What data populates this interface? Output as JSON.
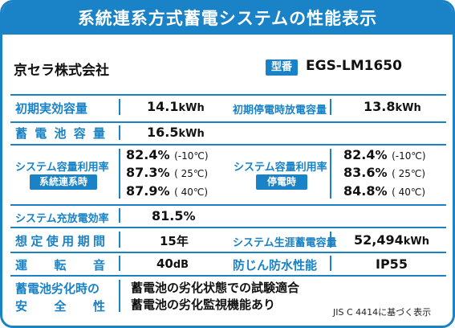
{
  "banner": {
    "title": "系統連系方式蓄電システムの性能表示"
  },
  "header": {
    "maker": "京セラ株式会社",
    "model_badge": "型番",
    "model": "EGS-LM1650"
  },
  "specs": {
    "capacity_initial": {
      "label": "初期実効容量",
      "value": "14.1",
      "unit": "kWh"
    },
    "capacity_initial_outage": {
      "label": "初期停電時放電容量",
      "value": "13.8",
      "unit": "kWh"
    },
    "storage_capacity": {
      "label_chars": [
        "蓄",
        "電",
        "池",
        "容",
        "量"
      ],
      "value": "16.5",
      "unit": "kWh"
    },
    "utilization_grid": {
      "label": "システム容量利用率",
      "badge": "系統連系時",
      "rows": [
        {
          "value": "82.4",
          "pct": "%",
          "temp": "(-10℃)"
        },
        {
          "value": "87.3",
          "pct": "%",
          "temp": "( 25℃)"
        },
        {
          "value": "87.9",
          "pct": "%",
          "temp": "( 40℃)"
        }
      ]
    },
    "utilization_outage": {
      "label": "システム容量利用率",
      "badge": "停電時",
      "rows": [
        {
          "value": "82.4",
          "pct": "%",
          "temp": "(-10℃)"
        },
        {
          "value": "83.6",
          "pct": "%",
          "temp": "( 25℃)"
        },
        {
          "value": "84.8",
          "pct": "%",
          "temp": "( 40℃)"
        }
      ]
    },
    "charge_efficiency": {
      "label": "システム充放電効率",
      "value": "81.5",
      "pct": "%"
    },
    "usage_period": {
      "label_chars": [
        "想",
        "定",
        "使",
        "用",
        "期",
        "間"
      ],
      "value": "15",
      "unit": "年"
    },
    "lifetime_storage": {
      "label": "システム生涯蓄電容量",
      "value": "52,494",
      "unit": "kWh"
    },
    "operating_noise": {
      "label_chars": [
        "運",
        "転",
        "音"
      ],
      "value": "40",
      "unit": "dB"
    },
    "waterproof": {
      "label": "防じん防水性能",
      "value": "IP55"
    },
    "safety": {
      "label_line1": "蓄電池劣化時の",
      "label_line2_chars": [
        "安",
        "全",
        "性"
      ],
      "text_line1": "蓄電池の劣化状態での試験適合",
      "text_line2": "蓄電池の劣化監視機能あり"
    }
  },
  "footnote": "JIS C 4414に基づく表示",
  "colors": {
    "accent": "#1a82c6",
    "text": "#111111",
    "background": "#ffffff"
  }
}
